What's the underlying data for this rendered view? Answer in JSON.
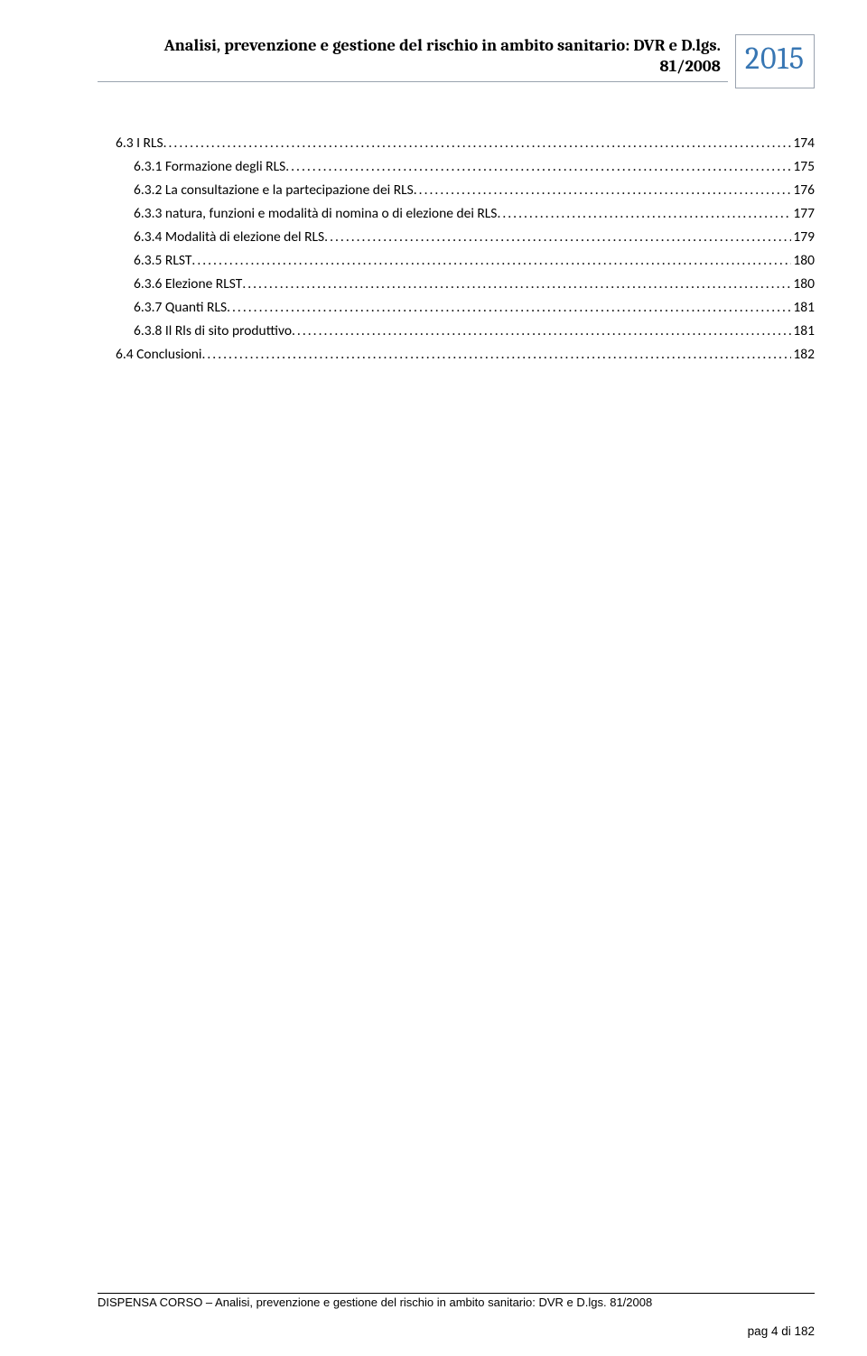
{
  "header": {
    "title_line1": "Analisi, prevenzione e gestione del rischio in ambito sanitario: DVR e D.lgs.",
    "title_line2": "81/2008",
    "year": "2015"
  },
  "toc": [
    {
      "indent": 1,
      "label": "6.3 I RLS",
      "page": "174"
    },
    {
      "indent": 2,
      "label": "6.3.1 Formazione degli RLS",
      "page": "175"
    },
    {
      "indent": 2,
      "label": "6.3.2 La consultazione e la partecipazione dei RLS",
      "page": "176"
    },
    {
      "indent": 2,
      "label": "6.3.3 natura, funzioni e modalità di nomina o di elezione dei RLS",
      "page": "177"
    },
    {
      "indent": 2,
      "label": "6.3.4 Modalità di elezione del RLS",
      "page": "179"
    },
    {
      "indent": 2,
      "label": "6.3.5 RLST",
      "page": "180"
    },
    {
      "indent": 2,
      "label": "6.3.6 Elezione RLST",
      "page": "180"
    },
    {
      "indent": 2,
      "label": "6.3.7 Quanti RLS",
      "page": "181"
    },
    {
      "indent": 2,
      "label": "6.3.8 Il Rls di sito produttivo",
      "page": "181"
    },
    {
      "indent": 1,
      "label": "6.4 Conclusioni",
      "page": "182"
    }
  ],
  "footer": {
    "text": "DISPENSA CORSO – Analisi, prevenzione e gestione del rischio in ambito sanitario: DVR e D.lgs. 81/2008",
    "page_number": "pag 4 di 182"
  },
  "colors": {
    "year_color": "#3776b3",
    "border_color": "#9aa3af",
    "text_color": "#000000",
    "background": "#ffffff"
  },
  "typography": {
    "header_font": "Cambria",
    "toc_font": "Calibri",
    "footer_font": "Century Gothic",
    "header_fontsize": 18.5,
    "year_fontsize": 34,
    "toc_fontsize": 15.5,
    "footer_fontsize": 13
  }
}
